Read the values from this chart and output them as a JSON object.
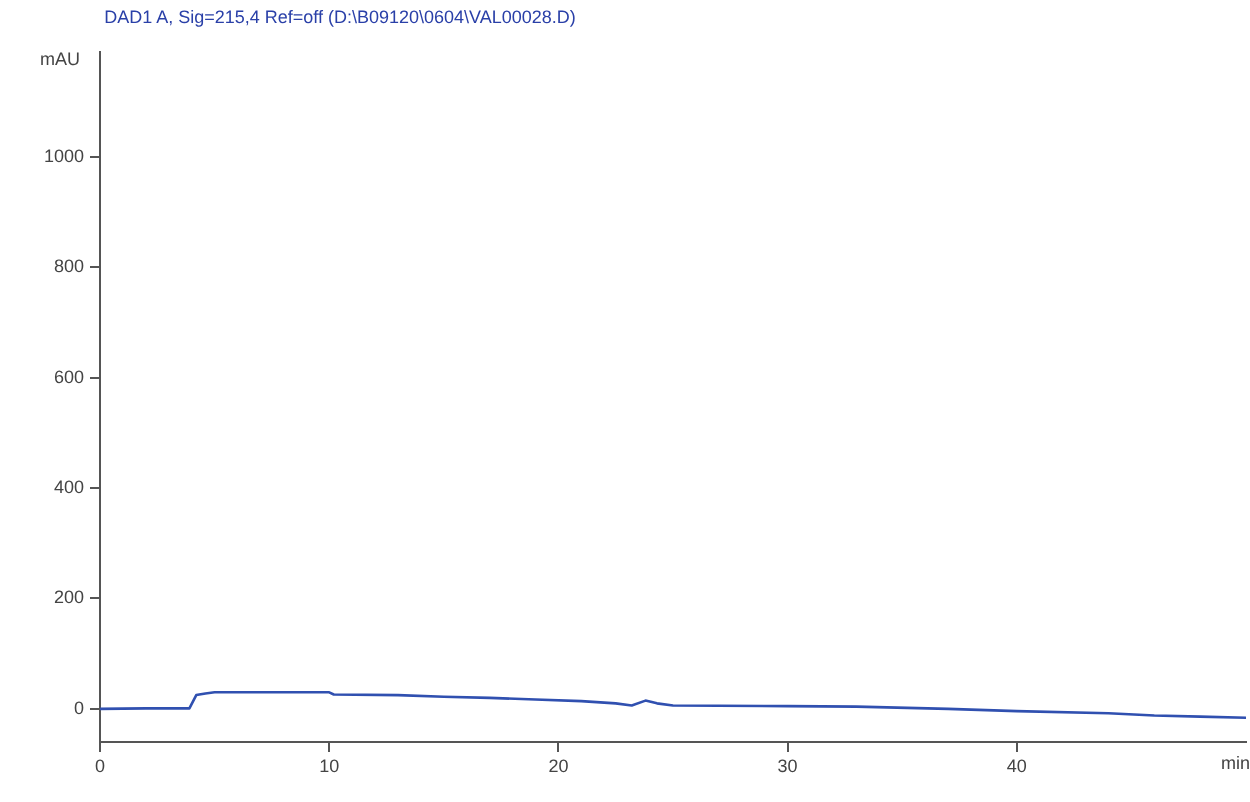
{
  "chart_data": {
    "type": "line",
    "title": "DAD1 A, Sig=215,4 Ref=off (D:\\B09120\\0604\\VAL00028.D)",
    "xlabel": "min",
    "ylabel": "mAU",
    "x": [
      0,
      2,
      3.9,
      4.2,
      4.6,
      5,
      7,
      10,
      10.2,
      13,
      15,
      17,
      19,
      21,
      22.5,
      23.2,
      23.8,
      24.3,
      25,
      30,
      33,
      37,
      40,
      44,
      46,
      48,
      50
    ],
    "series": [
      {
        "color": "#3050b0",
        "values": [
          0,
          1,
          1,
          25,
          28,
          30,
          30,
          30,
          26,
          25,
          22,
          20,
          17,
          14,
          10,
          6,
          15,
          10,
          6,
          5,
          4,
          0,
          -4,
          -8,
          -12,
          -14,
          -16
        ]
      }
    ],
    "xlim": [
      0,
      50
    ],
    "xticks": [
      0,
      10,
      20,
      30,
      40
    ],
    "ylim": [
      -60,
      1190
    ],
    "yticks": [
      0,
      200,
      400,
      600,
      800,
      1000
    ],
    "grid": false,
    "legend": false,
    "marker": "none",
    "line_style": "solid"
  }
}
